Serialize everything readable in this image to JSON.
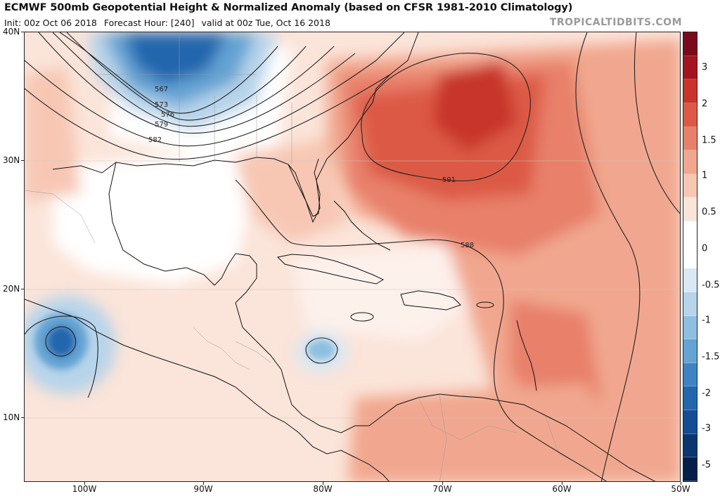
{
  "header": {
    "title": "ECMWF 500mb Geopotential Height & Normalized Anomaly (based on CFSR 1981-2010 Climatology)",
    "init": "Init: 00z Oct 06 2018",
    "forecast_hour": "Forecast Hour: [240]",
    "valid": "valid at 00z Tue, Oct 16 2018",
    "brand": "TROPICALTIDBITS.COM"
  },
  "axes": {
    "lat_labels": [
      "40N",
      "30N",
      "20N",
      "10N"
    ],
    "lon_labels": [
      "100W",
      "90W",
      "80W",
      "70W",
      "60W",
      "50W"
    ]
  },
  "contours": {
    "labels": [
      "567",
      "573",
      "576",
      "579",
      "582",
      "591",
      "588"
    ]
  },
  "colorbar": {
    "labels": [
      "3",
      "2",
      "1.5",
      "1",
      "0.5",
      "0",
      "-0.5",
      "-1",
      "-1.5",
      "-2",
      "-3",
      "-5"
    ],
    "colors": [
      "#7a0b1c",
      "#a3141f",
      "#c8342b",
      "#dc5a45",
      "#e8806a",
      "#f1a78f",
      "#f7c7b4",
      "#fbe4d9",
      "#ffffff",
      "#ffffff",
      "#dbe8f3",
      "#b7d4ea",
      "#8ebfe0",
      "#64a3d3",
      "#3f83c3",
      "#2466ad",
      "#144d94",
      "#0b3670",
      "#061f4a"
    ]
  }
}
